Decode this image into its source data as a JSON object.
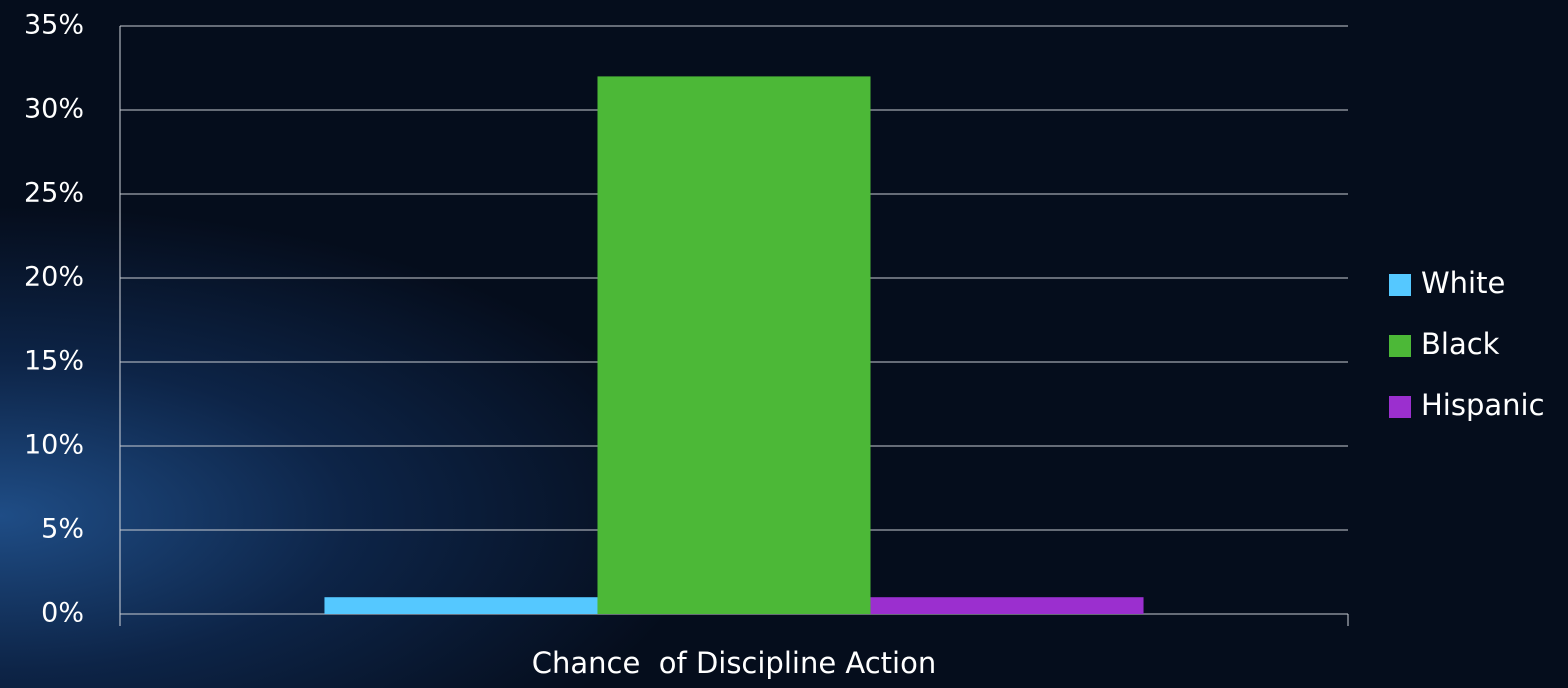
{
  "chart_data": {
    "type": "bar",
    "categories": [
      "Chance  of Discipline Action"
    ],
    "series": [
      {
        "name": "White",
        "color": "#55c8ff",
        "values": [
          1
        ]
      },
      {
        "name": "Black",
        "color": "#4cb837",
        "values": [
          32
        ]
      },
      {
        "name": "Hispanic",
        "color": "#9b2fcf",
        "values": [
          1
        ]
      }
    ],
    "ylim": [
      0,
      35
    ],
    "yticks": [
      {
        "value": 0,
        "label": "0%"
      },
      {
        "value": 5,
        "label": "5%"
      },
      {
        "value": 10,
        "label": "10%"
      },
      {
        "value": 15,
        "label": "15%"
      },
      {
        "value": 20,
        "label": "20%"
      },
      {
        "value": 25,
        "label": "25%"
      },
      {
        "value": 30,
        "label": "30%"
      },
      {
        "value": 35,
        "label": "35%"
      }
    ],
    "grid": true,
    "legend": "right"
  }
}
